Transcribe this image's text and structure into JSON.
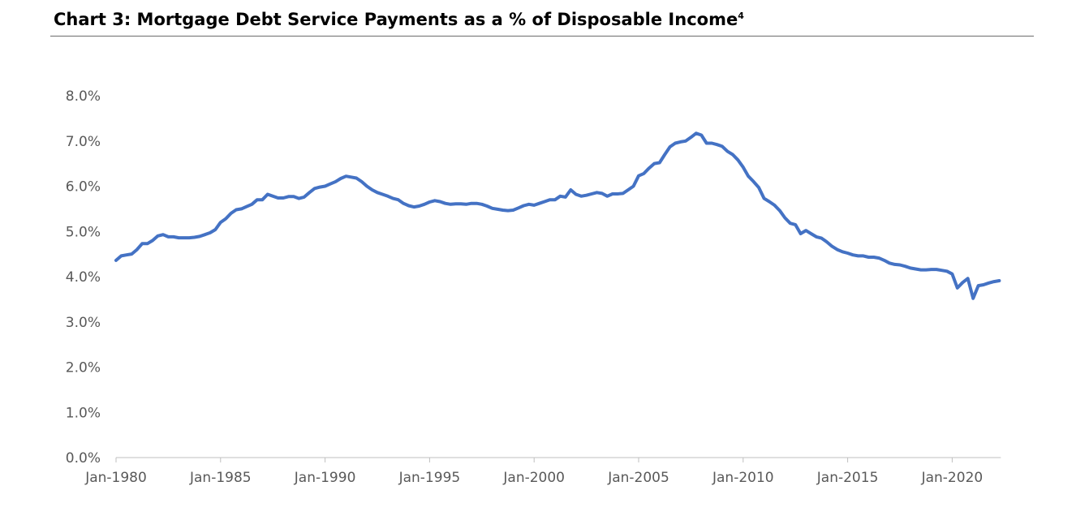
{
  "title": "Chart 3: Mortgage Debt Service Payments as a % of Disposable Income",
  "title_footnote": "4",
  "chart_data": {
    "type": "line",
    "title": "Chart 3: Mortgage Debt Service Payments as a % of Disposable Income",
    "xlabel": "",
    "ylabel": "",
    "ylim": [
      0,
      8
    ],
    "xlim": [
      1980.0,
      2022.25
    ],
    "y_tick_values": [
      0,
      1,
      2,
      3,
      4,
      5,
      6,
      7,
      8
    ],
    "y_tick_labels": [
      "0.0%",
      "1.0%",
      "2.0%",
      "3.0%",
      "4.0%",
      "5.0%",
      "6.0%",
      "7.0%",
      "8.0%"
    ],
    "x_tick_values": [
      1980,
      1985,
      1990,
      1995,
      2000,
      2005,
      2010,
      2015,
      2020
    ],
    "x_tick_labels": [
      "Jan-1980",
      "Jan-1985",
      "Jan-1990",
      "Jan-1995",
      "Jan-2000",
      "Jan-2005",
      "Jan-2010",
      "Jan-2015",
      "Jan-2020"
    ],
    "grid": false,
    "legend": "none",
    "line_color": "#4472C4",
    "series": [
      {
        "x": [
          1980.0,
          1980.25,
          1980.5,
          1980.75,
          1981.0,
          1981.25,
          1981.5,
          1981.75,
          1982.0,
          1982.25,
          1982.5,
          1982.75,
          1983.0,
          1983.25,
          1983.5,
          1983.75,
          1984.0,
          1984.25,
          1984.5,
          1984.75,
          1985.0,
          1985.25,
          1985.5,
          1985.75,
          1986.0,
          1986.25,
          1986.5,
          1986.75,
          1987.0,
          1987.25,
          1987.5,
          1987.75,
          1988.0,
          1988.25,
          1988.5,
          1988.75,
          1989.0,
          1989.25,
          1989.5,
          1989.75,
          1990.0,
          1990.25,
          1990.5,
          1990.75,
          1991.0,
          1991.25,
          1991.5,
          1991.75,
          1992.0,
          1992.25,
          1992.5,
          1992.75,
          1993.0,
          1993.25,
          1993.5,
          1993.75,
          1994.0,
          1994.25,
          1994.5,
          1994.75,
          1995.0,
          1995.25,
          1995.5,
          1995.75,
          1996.0,
          1996.25,
          1996.5,
          1996.75,
          1997.0,
          1997.25,
          1997.5,
          1997.75,
          1998.0,
          1998.25,
          1998.5,
          1998.75,
          1999.0,
          1999.25,
          1999.5,
          1999.75,
          2000.0,
          2000.25,
          2000.5,
          2000.75,
          2001.0,
          2001.25,
          2001.5,
          2001.75,
          2002.0,
          2002.25,
          2002.5,
          2002.75,
          2003.0,
          2003.25,
          2003.5,
          2003.75,
          2004.0,
          2004.25,
          2004.5,
          2004.75,
          2005.0,
          2005.25,
          2005.5,
          2005.75,
          2006.0,
          2006.25,
          2006.5,
          2006.75,
          2007.0,
          2007.25,
          2007.5,
          2007.75,
          2008.0,
          2008.25,
          2008.5,
          2008.75,
          2009.0,
          2009.25,
          2009.5,
          2009.75,
          2010.0,
          2010.25,
          2010.5,
          2010.75,
          2011.0,
          2011.25,
          2011.5,
          2011.75,
          2012.0,
          2012.25,
          2012.5,
          2012.75,
          2013.0,
          2013.25,
          2013.5,
          2013.75,
          2014.0,
          2014.25,
          2014.5,
          2014.75,
          2015.0,
          2015.25,
          2015.5,
          2015.75,
          2016.0,
          2016.25,
          2016.5,
          2016.75,
          2017.0,
          2017.25,
          2017.5,
          2017.75,
          2018.0,
          2018.25,
          2018.5,
          2018.75,
          2019.0,
          2019.25,
          2019.5,
          2019.75,
          2020.0,
          2020.25,
          2020.5,
          2020.75,
          2021.0,
          2021.25,
          2021.5,
          2021.75,
          2022.0,
          2022.25
        ],
        "y": [
          4.36,
          4.46,
          4.48,
          4.5,
          4.6,
          4.73,
          4.73,
          4.8,
          4.9,
          4.93,
          4.88,
          4.88,
          4.86,
          4.86,
          4.86,
          4.87,
          4.89,
          4.93,
          4.97,
          5.04,
          5.2,
          5.28,
          5.4,
          5.48,
          5.5,
          5.55,
          5.6,
          5.7,
          5.7,
          5.82,
          5.78,
          5.74,
          5.74,
          5.77,
          5.77,
          5.73,
          5.76,
          5.86,
          5.95,
          5.98,
          6.0,
          6.05,
          6.1,
          6.17,
          6.22,
          6.2,
          6.18,
          6.1,
          6.0,
          5.92,
          5.86,
          5.82,
          5.78,
          5.73,
          5.7,
          5.62,
          5.57,
          5.54,
          5.56,
          5.6,
          5.65,
          5.68,
          5.66,
          5.62,
          5.6,
          5.61,
          5.61,
          5.6,
          5.62,
          5.62,
          5.6,
          5.56,
          5.51,
          5.49,
          5.47,
          5.46,
          5.47,
          5.52,
          5.57,
          5.6,
          5.58,
          5.62,
          5.66,
          5.7,
          5.7,
          5.78,
          5.76,
          5.92,
          5.82,
          5.78,
          5.8,
          5.83,
          5.86,
          5.84,
          5.78,
          5.83,
          5.83,
          5.84,
          5.92,
          6.0,
          6.23,
          6.28,
          6.4,
          6.5,
          6.52,
          6.7,
          6.87,
          6.95,
          6.98,
          7.0,
          7.08,
          7.17,
          7.13,
          6.95,
          6.95,
          6.92,
          6.88,
          6.77,
          6.7,
          6.58,
          6.42,
          6.22,
          6.1,
          5.97,
          5.73,
          5.66,
          5.58,
          5.46,
          5.3,
          5.18,
          5.15,
          4.95,
          5.02,
          4.95,
          4.88,
          4.85,
          4.77,
          4.67,
          4.6,
          4.55,
          4.52,
          4.48,
          4.46,
          4.46,
          4.43,
          4.43,
          4.41,
          4.36,
          4.3,
          4.27,
          4.26,
          4.23,
          4.19,
          4.17,
          4.15,
          4.15,
          4.16,
          4.16,
          4.14,
          4.12,
          4.06,
          3.75,
          3.87,
          3.96,
          3.52,
          3.8,
          3.82,
          3.86,
          3.89,
          3.91
        ]
      }
    ]
  }
}
